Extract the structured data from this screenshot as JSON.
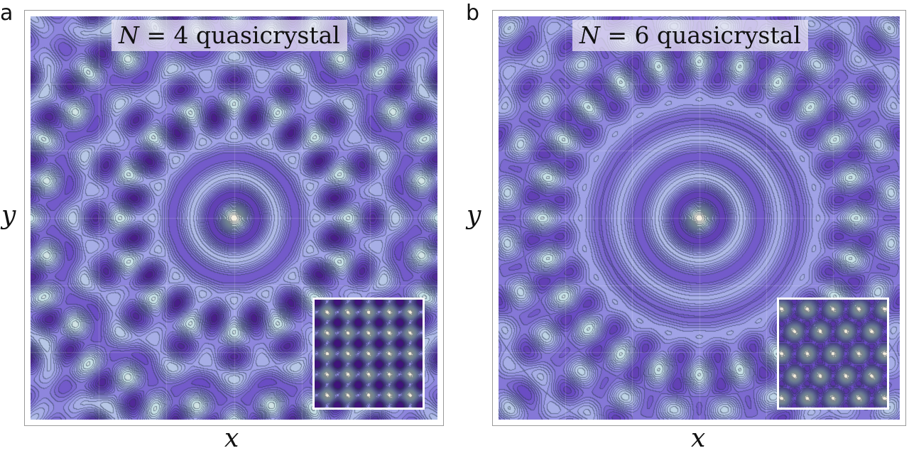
{
  "panels": [
    {
      "letter": "a",
      "title_var": "N",
      "title_eq": " = 4 quasicrystal",
      "xlabel": "x",
      "ylabel": "y"
    },
    {
      "letter": "b",
      "title_var": "N",
      "title_eq": " = 6 quasicrystal",
      "xlabel": "x",
      "ylabel": "y"
    }
  ],
  "chart_data": [
    {
      "type": "heatmap",
      "title": "N = 4 quasicrystal",
      "xlabel": "x",
      "ylabel": "y",
      "symmetry_order": 4,
      "waves": 8,
      "field": "sum of N plane waves (contour plot)",
      "inset": {
        "type": "heatmap",
        "lattice": "square",
        "waves": 2
      },
      "grid": true,
      "colormap": [
        "#3c0d74",
        "#6a4dc4",
        "#9c9ce6",
        "#c6dfe6",
        "#faf0dd"
      ]
    },
    {
      "type": "heatmap",
      "title": "N = 6 quasicrystal",
      "xlabel": "x",
      "ylabel": "y",
      "symmetry_order": 6,
      "waves": 12,
      "field": "sum of N plane waves (contour plot)",
      "inset": {
        "type": "heatmap",
        "lattice": "hexagonal",
        "waves": 3
      },
      "grid": true,
      "colormap": [
        "#3c0d74",
        "#6a4dc4",
        "#9c9ce6",
        "#c6dfe6",
        "#faf0dd"
      ]
    }
  ]
}
